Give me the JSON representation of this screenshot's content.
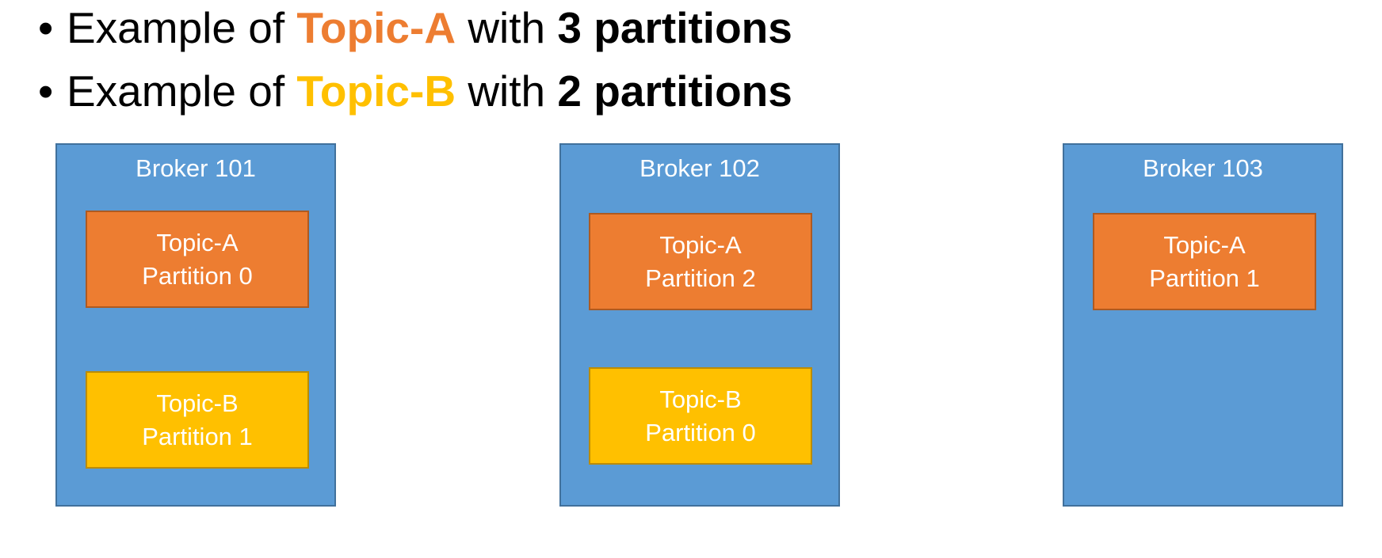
{
  "colors": {
    "topic_a": "#ed7d31",
    "topic_b": "#ffc000",
    "broker": "#5b9bd5"
  },
  "bullets": [
    {
      "prefix": "Example of ",
      "topic": "Topic-A",
      "middle": " with ",
      "count": "3 partitions"
    },
    {
      "prefix": "Example of ",
      "topic": "Topic-B",
      "middle": " with ",
      "count": "2 partitions"
    }
  ],
  "brokers": [
    {
      "title": "Broker 101",
      "partitions": [
        {
          "topic": "Topic-A",
          "partition": "Partition 0"
        },
        {
          "topic": "Topic-B",
          "partition": "Partition 1"
        }
      ]
    },
    {
      "title": "Broker 102",
      "partitions": [
        {
          "topic": "Topic-A",
          "partition": "Partition 2"
        },
        {
          "topic": "Topic-B",
          "partition": "Partition 0"
        }
      ]
    },
    {
      "title": "Broker 103",
      "partitions": [
        {
          "topic": "Topic-A",
          "partition": "Partition 1"
        }
      ]
    }
  ]
}
